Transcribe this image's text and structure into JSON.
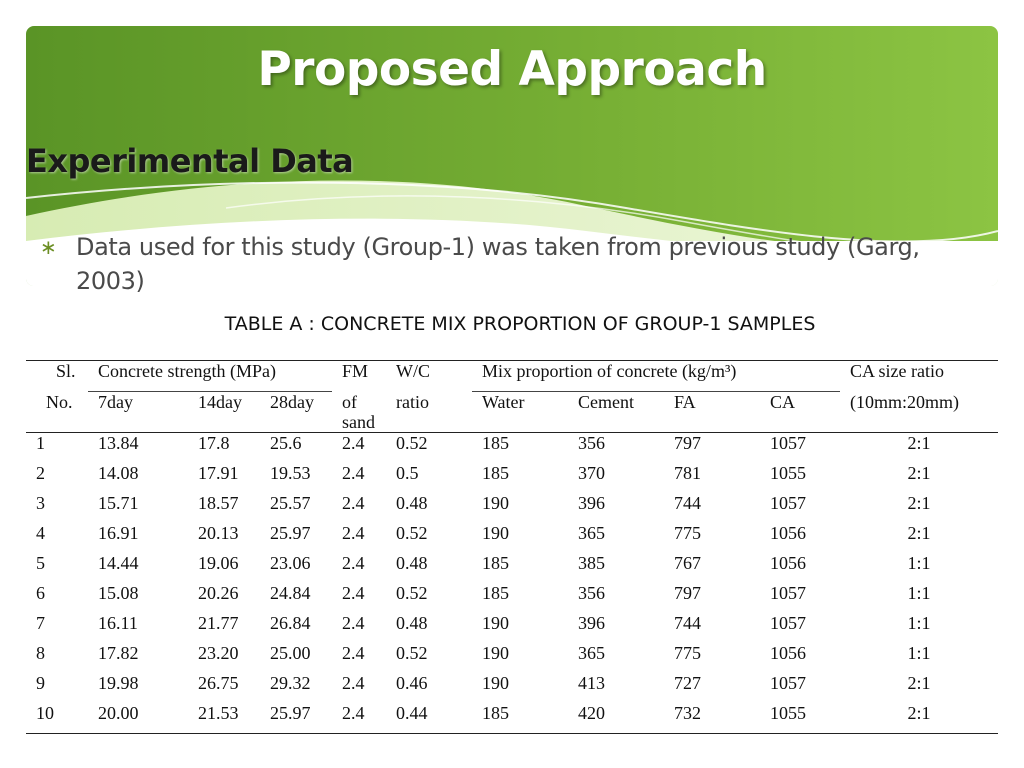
{
  "slide": {
    "title": "Proposed Approach",
    "subtitle": "Experimental Data",
    "bullet_mark": "∗",
    "bullet_text": "Data used for this study (Group-1) was taken from previous study (Garg, 2003)",
    "caption": "TABLE A : CONCRETE MIX PROPORTION OF GROUP-1 SAMPLES"
  },
  "colors": {
    "header_dark": "#5f9a2a",
    "header_light": "#a9d56a"
  },
  "table": {
    "h_sl": "Sl.",
    "h_no": "No.",
    "h_strength": "Concrete strength (MPa)",
    "h_7day": "7day",
    "h_14day": "14day",
    "h_28day": "28day",
    "h_fm": "FM",
    "h_of": "of",
    "h_sand": "sand",
    "h_wc": "W/C",
    "h_ratio": "ratio",
    "h_mix": "Mix proportion of concrete (kg/m³)",
    "h_water": "Water",
    "h_cement": "Cement",
    "h_fa": "FA",
    "h_ca": "CA",
    "h_casize": "CA size ratio",
    "h_casize2": "(10mm:20mm)",
    "rows": [
      [
        "1",
        "13.84",
        "17.8",
        "25.6",
        "2.4",
        "0.52",
        "185",
        "356",
        "797",
        "1057",
        "2:1"
      ],
      [
        "2",
        "14.08",
        "17.91",
        "19.53",
        "2.4",
        "0.5",
        "185",
        "370",
        "781",
        "1055",
        "2:1"
      ],
      [
        "3",
        "15.71",
        "18.57",
        "25.57",
        "2.4",
        "0.48",
        "190",
        "396",
        "744",
        "1057",
        "2:1"
      ],
      [
        "4",
        "16.91",
        "20.13",
        "25.97",
        "2.4",
        "0.52",
        "190",
        "365",
        "775",
        "1056",
        "2:1"
      ],
      [
        "5",
        "14.44",
        "19.06",
        "23.06",
        "2.4",
        "0.48",
        "185",
        "385",
        "767",
        "1056",
        "1:1"
      ],
      [
        "6",
        "15.08",
        "20.26",
        "24.84",
        "2.4",
        "0.52",
        "185",
        "356",
        "797",
        "1057",
        "1:1"
      ],
      [
        "7",
        "16.11",
        "21.77",
        "26.84",
        "2.4",
        "0.48",
        "190",
        "396",
        "744",
        "1057",
        "1:1"
      ],
      [
        "8",
        "17.82",
        "23.20",
        "25.00",
        "2.4",
        "0.52",
        "190",
        "365",
        "775",
        "1056",
        "1:1"
      ],
      [
        "9",
        "19.98",
        "26.75",
        "29.32",
        "2.4",
        "0.46",
        "190",
        "413",
        "727",
        "1057",
        "2:1"
      ],
      [
        "10",
        "20.00",
        "21.53",
        "25.97",
        "2.4",
        "0.44",
        "185",
        "420",
        "732",
        "1055",
        "2:1"
      ]
    ]
  }
}
